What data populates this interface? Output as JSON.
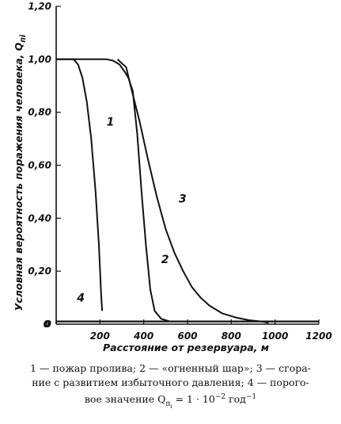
{
  "chart_data": {
    "type": "line",
    "xlabel": "Расстояние от резервуара, м",
    "ylabel": "Условная вероятность поражения человека, Q",
    "ylabel_sub": "пi",
    "xlim": [
      0,
      1200
    ],
    "ylim": [
      0,
      1.2
    ],
    "x_ticks": [
      "0",
      "200",
      "400",
      "600",
      "800",
      "1000",
      "1200"
    ],
    "y_ticks": [
      "0",
      "0,20",
      "0,40",
      "0,60",
      "0,80",
      "1,00",
      "1,20"
    ],
    "grid": false,
    "series": [
      {
        "name": "1",
        "x": [
          0,
          40,
          80,
          100,
          120,
          140,
          160,
          180,
          195,
          205,
          210
        ],
        "y": [
          1.0,
          1.0,
          1.0,
          0.98,
          0.93,
          0.84,
          0.7,
          0.5,
          0.3,
          0.12,
          0.05
        ]
      },
      {
        "name": "2",
        "x": [
          0,
          100,
          150,
          200,
          230,
          260,
          290,
          315,
          330,
          350,
          370,
          390,
          410,
          430,
          450,
          480,
          520
        ],
        "y": [
          1.0,
          1.0,
          1.0,
          1.0,
          1.0,
          0.995,
          0.98,
          0.95,
          0.93,
          0.88,
          0.72,
          0.5,
          0.3,
          0.13,
          0.05,
          0.02,
          0.01
        ]
      },
      {
        "name": "3",
        "x": [
          280,
          320,
          340,
          380,
          420,
          460,
          500,
          540,
          580,
          620,
          660,
          700,
          760,
          820,
          880,
          940,
          970
        ],
        "y": [
          1.0,
          0.97,
          0.9,
          0.77,
          0.62,
          0.48,
          0.36,
          0.27,
          0.2,
          0.14,
          0.1,
          0.07,
          0.04,
          0.025,
          0.015,
          0.01,
          0.005
        ]
      },
      {
        "name": "4",
        "x": [
          0,
          1200
        ],
        "y": [
          0.01,
          0.01
        ]
      }
    ]
  },
  "caption": {
    "line1": "1 — пожар пролива; 2 — «огненный шар»; 3 — сгора-",
    "line2": "ние с развитием избыточного давления; 4 — порого-",
    "line3": "вое значение Q",
    "line3_sub": "п",
    "line3_subsub": "i",
    "line3_tail": " = 1 · 10",
    "line3_exp": "−2",
    "line3_end": " год",
    "line3_end_exp": "−1"
  }
}
